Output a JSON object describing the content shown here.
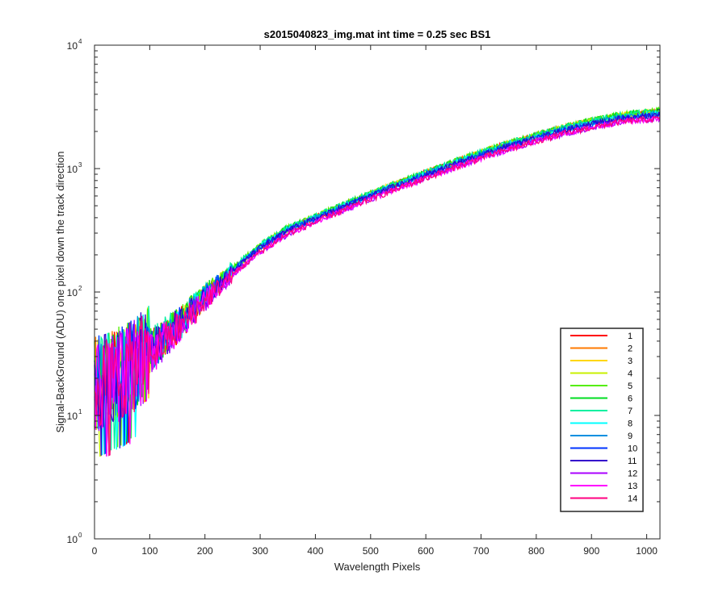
{
  "chart_data": {
    "type": "line",
    "title": "s2015040823_img.mat int time = 0.25 sec   BS1",
    "xlabel": "Wavelength Pixels",
    "ylabel": "Signal-BackGround (ADU) one pixel down the track direction",
    "xlim": [
      0,
      1024
    ],
    "ylim": [
      1,
      10000
    ],
    "yscale": "log",
    "x_ticks": [
      "0",
      "100",
      "200",
      "300",
      "400",
      "500",
      "600",
      "700",
      "800",
      "900",
      "1000"
    ],
    "y_ticks": [
      {
        "base": "10",
        "exp": "0"
      },
      {
        "base": "10",
        "exp": "1"
      },
      {
        "base": "10",
        "exp": "2"
      },
      {
        "base": "10",
        "exp": "3"
      },
      {
        "base": "10",
        "exp": "4"
      }
    ],
    "grid": false,
    "legend_position": "lower-right",
    "x": [
      0,
      50,
      100,
      150,
      200,
      250,
      300,
      350,
      400,
      450,
      500,
      550,
      600,
      650,
      700,
      750,
      800,
      850,
      900,
      950,
      1024
    ],
    "series": [
      {
        "name": "1",
        "color": "#ff0000",
        "values": [
          18,
          22,
          32,
          52,
          90,
          150,
          230,
          320,
          400,
          500,
          620,
          760,
          920,
          1120,
          1350,
          1600,
          1850,
          2150,
          2400,
          2650,
          2900
        ]
      },
      {
        "name": "2",
        "color": "#ff7a00",
        "values": [
          18,
          22,
          32,
          52,
          90,
          150,
          230,
          320,
          400,
          500,
          620,
          760,
          920,
          1120,
          1350,
          1600,
          1850,
          2150,
          2400,
          2650,
          2900
        ]
      },
      {
        "name": "3",
        "color": "#ffd700",
        "values": [
          18,
          22,
          33,
          53,
          92,
          152,
          235,
          325,
          405,
          505,
          625,
          765,
          925,
          1125,
          1355,
          1605,
          1860,
          2160,
          2420,
          2680,
          2920
        ]
      },
      {
        "name": "4",
        "color": "#c8f000",
        "values": [
          18,
          22,
          33,
          53,
          92,
          152,
          235,
          325,
          405,
          505,
          625,
          765,
          925,
          1125,
          1355,
          1605,
          1860,
          2160,
          2420,
          2680,
          2920
        ]
      },
      {
        "name": "5",
        "color": "#55ee00",
        "values": [
          18,
          23,
          34,
          54,
          93,
          155,
          240,
          330,
          410,
          510,
          630,
          770,
          930,
          1130,
          1360,
          1610,
          1870,
          2180,
          2450,
          2720,
          2950
        ]
      },
      {
        "name": "6",
        "color": "#00dd22",
        "values": [
          18,
          23,
          34,
          54,
          93,
          155,
          240,
          330,
          410,
          510,
          630,
          770,
          930,
          1130,
          1360,
          1610,
          1870,
          2180,
          2450,
          2720,
          2950
        ]
      },
      {
        "name": "7",
        "color": "#00f0a0",
        "values": [
          18,
          23,
          34,
          54,
          93,
          155,
          240,
          330,
          410,
          510,
          630,
          770,
          930,
          1130,
          1360,
          1610,
          1870,
          2180,
          2450,
          2720,
          2950
        ]
      },
      {
        "name": "8",
        "color": "#00ffff",
        "values": [
          18,
          22,
          33,
          53,
          92,
          150,
          232,
          320,
          398,
          495,
          610,
          745,
          900,
          1090,
          1310,
          1550,
          1790,
          2080,
          2330,
          2580,
          2800
        ]
      },
      {
        "name": "9",
        "color": "#0090e0",
        "values": [
          18,
          22,
          33,
          53,
          92,
          150,
          232,
          320,
          398,
          495,
          610,
          745,
          900,
          1090,
          1310,
          1550,
          1790,
          2080,
          2330,
          2580,
          2800
        ]
      },
      {
        "name": "10",
        "color": "#0033ff",
        "values": [
          18,
          22,
          33,
          53,
          91,
          148,
          228,
          315,
          392,
          488,
          600,
          735,
          885,
          1070,
          1290,
          1520,
          1760,
          2040,
          2290,
          2530,
          2750
        ]
      },
      {
        "name": "11",
        "color": "#3300cc",
        "values": [
          18,
          22,
          33,
          53,
          91,
          148,
          228,
          315,
          392,
          488,
          600,
          735,
          885,
          1070,
          1290,
          1520,
          1760,
          2040,
          2290,
          2530,
          2750
        ]
      },
      {
        "name": "12",
        "color": "#aa00ff",
        "values": [
          17,
          21,
          31,
          50,
          85,
          138,
          212,
          295,
          368,
          458,
          565,
          690,
          835,
          1010,
          1215,
          1430,
          1660,
          1920,
          2150,
          2380,
          2550
        ]
      },
      {
        "name": "13",
        "color": "#ff00ff",
        "values": [
          17,
          21,
          31,
          50,
          85,
          138,
          212,
          295,
          368,
          458,
          565,
          690,
          835,
          1010,
          1215,
          1430,
          1660,
          1920,
          2150,
          2380,
          2550
        ]
      },
      {
        "name": "14",
        "color": "#ff0080",
        "values": [
          17,
          21,
          31,
          50,
          85,
          138,
          212,
          295,
          368,
          458,
          565,
          690,
          835,
          1010,
          1215,
          1430,
          1660,
          1920,
          2150,
          2380,
          2550
        ]
      }
    ]
  }
}
